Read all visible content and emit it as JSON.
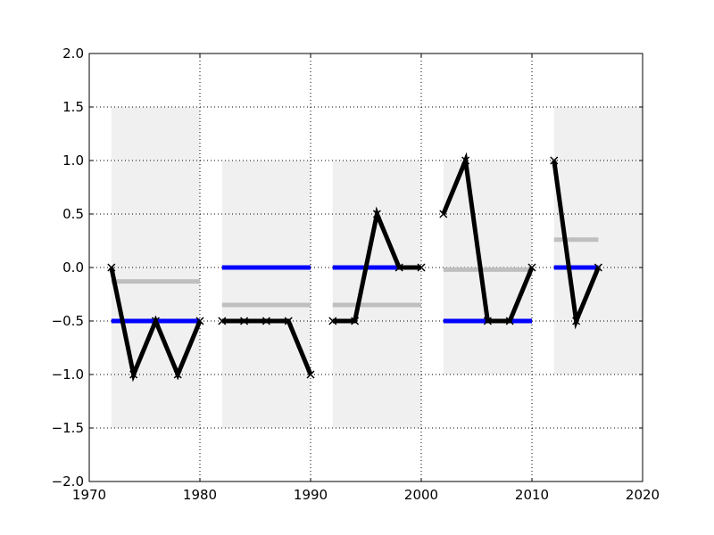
{
  "chart_data": {
    "type": "line",
    "title": "",
    "xlabel": "",
    "ylabel": "",
    "xlim": [
      1970,
      2020
    ],
    "ylim": [
      -2.0,
      2.0
    ],
    "grid": true,
    "x_ticks": [
      "1970",
      "1980",
      "1990",
      "2000",
      "2010",
      "2020"
    ],
    "y_ticks": [
      "2.0",
      "1.5",
      "1.0",
      "0.5",
      "0.0",
      "−0.5",
      "−1.0",
      "−1.5",
      "−2.0"
    ],
    "segments": [
      {
        "x": [
          1972,
          1974,
          1976,
          1978,
          1980
        ],
        "y": [
          0.0,
          -1.0,
          -0.5,
          -1.0,
          -0.5
        ],
        "band": [
          -1.5,
          1.5
        ],
        "blue_level": -0.5,
        "gray_level": -0.13
      },
      {
        "x": [
          1982,
          1984,
          1986,
          1988,
          1990
        ],
        "y": [
          -0.5,
          -0.5,
          -0.5,
          -0.5,
          -1.0
        ],
        "band": [
          -1.5,
          1.0
        ],
        "blue_level": 0.0,
        "gray_level": -0.35
      },
      {
        "x": [
          1992,
          1994,
          1996,
          1998,
          2000
        ],
        "y": [
          -0.5,
          -0.5,
          0.5,
          0.0,
          0.0
        ],
        "band": [
          -1.5,
          1.0
        ],
        "blue_level": 0.0,
        "gray_level": -0.35
      },
      {
        "x": [
          2002,
          2004,
          2006,
          2008,
          2010
        ],
        "y": [
          0.5,
          1.0,
          -0.5,
          -0.5,
          0.0
        ],
        "band": [
          -1.0,
          1.0
        ],
        "blue_level": -0.5,
        "gray_level": -0.02
      },
      {
        "x": [
          2012,
          2014,
          2016
        ],
        "y": [
          1.0,
          -0.5,
          0.0
        ],
        "band": [
          -1.0,
          1.5
        ],
        "band_x": [
          2012,
          2020
        ],
        "blue_level": 0.0,
        "blue_x": [
          2012,
          2016
        ],
        "gray_level": 0.26,
        "gray_x": [
          2012,
          2016
        ]
      }
    ],
    "colors": {
      "line": "#000000",
      "blue_level": "#0000ff",
      "gray_level": "#bfbfbf",
      "band": "#f0f0f0",
      "grid": "#000000"
    }
  }
}
